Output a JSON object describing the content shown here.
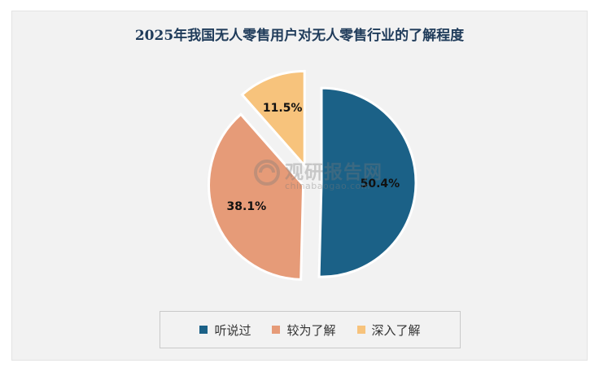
{
  "chart_data": {
    "type": "pie",
    "title": "2025年我国无人零售用户对无人零售行业的了解程度",
    "categories": [
      "听说过",
      "较为了解",
      "深入了解"
    ],
    "values": [
      50.4,
      38.1,
      11.5
    ],
    "labels": [
      "50.4%",
      "38.1%",
      "11.5%"
    ],
    "colors": [
      "#1b6187",
      "#e69b78",
      "#f7c37c"
    ],
    "legend": "bottom",
    "exploded": true
  },
  "watermark": {
    "name": "观研报告网",
    "url": "chinabaogao.com"
  }
}
